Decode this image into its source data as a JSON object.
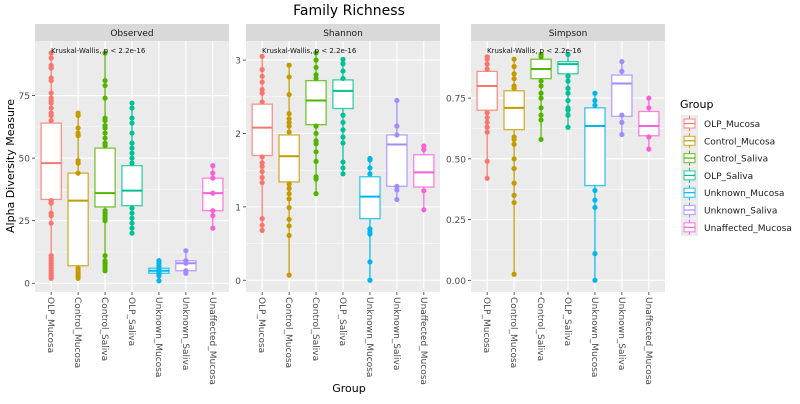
{
  "chart_data": {
    "type": "box",
    "title": "Family Richness",
    "xlabel": "Group",
    "ylabel": "Alpha Diversity Measure",
    "categories": [
      "OLP_Mucosa",
      "Control_Mucosa",
      "Control_Saliva",
      "OLP_Saliva",
      "Unknown_Mucosa",
      "Unknown_Saliva",
      "Unaffected_Mucosa"
    ],
    "colors": [
      "#F8766D",
      "#C49A00",
      "#53B400",
      "#00C094",
      "#00B6EB",
      "#A58AFF",
      "#FB61D7"
    ],
    "legend": {
      "title": "Group",
      "position": "right"
    },
    "grid": true,
    "panels": [
      {
        "name": "Observed",
        "annotation": "Kruskal-Wallis, p < 2.2e-16",
        "ylim": [
          -3.5,
          96.8
        ],
        "yticks": [
          0,
          25,
          50,
          75
        ],
        "ytick_labels": [
          "0",
          "25",
          "50",
          "75"
        ],
        "boxes": [
          {
            "min": 2,
            "q1": 33.5,
            "median": 48,
            "q3": 64,
            "max": 92,
            "points": [
              2,
              3,
              4,
              5,
              6,
              7,
              8,
              9,
              10,
              11,
              24,
              27,
              28,
              32,
              33,
              65,
              67,
              68,
              70,
              72,
              73,
              74,
              76,
              81,
              82,
              86,
              87,
              90,
              92
            ]
          },
          {
            "min": 2,
            "q1": 7,
            "median": 33,
            "q3": 44,
            "max": 68,
            "points": [
              2,
              3,
              4,
              5,
              6,
              44,
              48,
              49,
              59,
              60,
              62,
              67,
              68
            ]
          },
          {
            "min": 5,
            "q1": 30.5,
            "median": 36,
            "q3": 54,
            "max": 92,
            "points": [
              5,
              6,
              7,
              8,
              9,
              11,
              25,
              26,
              27,
              28,
              29,
              55,
              56,
              58,
              60,
              62,
              63,
              65,
              66,
              74,
              79,
              81,
              92
            ]
          },
          {
            "min": 20,
            "q1": 31,
            "median": 37,
            "q3": 47,
            "max": 72,
            "points": [
              20,
              22,
              24,
              26,
              28,
              30,
              48,
              50,
              52,
              54,
              56,
              60,
              64,
              66,
              70,
              72
            ]
          },
          {
            "min": 1,
            "q1": 4,
            "median": 5,
            "q3": 6,
            "max": 9,
            "points": [
              1,
              3,
              4,
              5,
              6,
              7,
              8,
              9
            ]
          },
          {
            "min": 4,
            "q1": 5,
            "median": 8,
            "q3": 9,
            "max": 13,
            "points": [
              4,
              5,
              8,
              9,
              13
            ]
          },
          {
            "min": 22,
            "q1": 29,
            "median": 36,
            "q3": 42,
            "max": 47,
            "points": [
              22,
              27,
              29,
              36,
              42,
              44,
              47
            ]
          }
        ]
      },
      {
        "name": "Shannon",
        "annotation": "Kruskal-Wallis, p < 2.2e-16",
        "ylim": [
          -0.16,
          3.26
        ],
        "yticks": [
          0,
          1,
          2,
          3
        ],
        "ytick_labels": [
          "0",
          "1",
          "2",
          "3"
        ],
        "boxes": [
          {
            "min": 0.68,
            "q1": 1.7,
            "median": 2.08,
            "q3": 2.4,
            "max": 3.05,
            "points": [
              0.68,
              0.75,
              0.84,
              1.33,
              1.4,
              1.48,
              1.55,
              1.6,
              1.68,
              2.43,
              2.55,
              2.6,
              2.7,
              2.78,
              2.87,
              3.05
            ]
          },
          {
            "min": 0.07,
            "q1": 1.34,
            "median": 1.69,
            "q3": 1.98,
            "max": 2.93,
            "points": [
              0.07,
              0.61,
              0.74,
              0.83,
              0.99,
              1.11,
              1.18,
              1.25,
              1.31,
              2.02,
              2.1,
              2.15,
              2.2,
              2.27,
              2.53,
              2.77,
              2.93
            ]
          },
          {
            "min": 1.18,
            "q1": 2.12,
            "median": 2.45,
            "q3": 2.72,
            "max": 3.1,
            "points": [
              1.18,
              1.38,
              1.41,
              1.62,
              1.75,
              1.86,
              1.9,
              2.0,
              2.1,
              2.75,
              2.8,
              2.9,
              3.0,
              3.1
            ]
          },
          {
            "min": 1.45,
            "q1": 2.34,
            "median": 2.58,
            "q3": 2.73,
            "max": 3.01,
            "points": [
              1.45,
              1.53,
              1.61,
              1.87,
              1.95,
              2.05,
              2.15,
              2.25,
              2.75,
              2.85,
              2.95,
              3.01
            ]
          },
          {
            "min": 0,
            "q1": 0.84,
            "median": 1.14,
            "q3": 1.41,
            "max": 1.66,
            "points": [
              0,
              0.25,
              0.63,
              0.66,
              0.7,
              1.45,
              1.53,
              1.64,
              1.66
            ]
          },
          {
            "min": 1.1,
            "q1": 1.28,
            "median": 1.85,
            "q3": 1.98,
            "max": 2.45,
            "points": [
              1.1,
              1.23,
              1.28,
              1.98,
              2.1,
              2.45
            ]
          },
          {
            "min": 0.96,
            "q1": 1.27,
            "median": 1.47,
            "q3": 1.71,
            "max": 1.83,
            "points": [
              0.96,
              1.22,
              1.78,
              1.83
            ]
          }
        ]
      },
      {
        "name": "Simpson",
        "annotation": "Kruskal-Wallis, p < 2.2e-16",
        "ylim": [
          -0.048,
          0.985
        ],
        "yticks": [
          0,
          0.25,
          0.5,
          0.75
        ],
        "ytick_labels": [
          "0.00",
          "0.25",
          "0.50",
          "0.75"
        ],
        "boxes": [
          {
            "min": 0.42,
            "q1": 0.7,
            "median": 0.8,
            "q3": 0.86,
            "max": 0.92,
            "points": [
              0.42,
              0.49,
              0.61,
              0.63,
              0.65,
              0.67,
              0.69,
              0.87,
              0.89,
              0.91,
              0.92
            ]
          },
          {
            "min": 0.025,
            "q1": 0.62,
            "median": 0.71,
            "q3": 0.78,
            "max": 0.91,
            "points": [
              0.025,
              0.32,
              0.35,
              0.4,
              0.46,
              0.5,
              0.56,
              0.58,
              0.59,
              0.79,
              0.8,
              0.83,
              0.85,
              0.88,
              0.91
            ]
          },
          {
            "min": 0.58,
            "q1": 0.83,
            "median": 0.87,
            "q3": 0.91,
            "max": 0.93,
            "points": [
              0.58,
              0.66,
              0.68,
              0.71,
              0.75,
              0.77,
              0.8,
              0.82,
              0.92,
              0.93
            ]
          },
          {
            "min": 0.63,
            "q1": 0.85,
            "median": 0.89,
            "q3": 0.9,
            "max": 0.93,
            "points": [
              0.63,
              0.68,
              0.7,
              0.71,
              0.74,
              0.77,
              0.79,
              0.82,
              0.84,
              0.93
            ]
          },
          {
            "min": 0,
            "q1": 0.39,
            "median": 0.635,
            "q3": 0.71,
            "max": 0.77,
            "points": [
              0,
              0.11,
              0.3,
              0.33,
              0.37,
              0.72,
              0.74,
              0.77
            ]
          },
          {
            "min": 0.6,
            "q1": 0.675,
            "median": 0.81,
            "q3": 0.845,
            "max": 0.9,
            "points": [
              0.6,
              0.65,
              0.68,
              0.86,
              0.9
            ]
          },
          {
            "min": 0.54,
            "q1": 0.595,
            "median": 0.635,
            "q3": 0.695,
            "max": 0.75,
            "points": [
              0.54,
              0.59,
              0.71,
              0.75
            ]
          }
        ]
      }
    ]
  }
}
